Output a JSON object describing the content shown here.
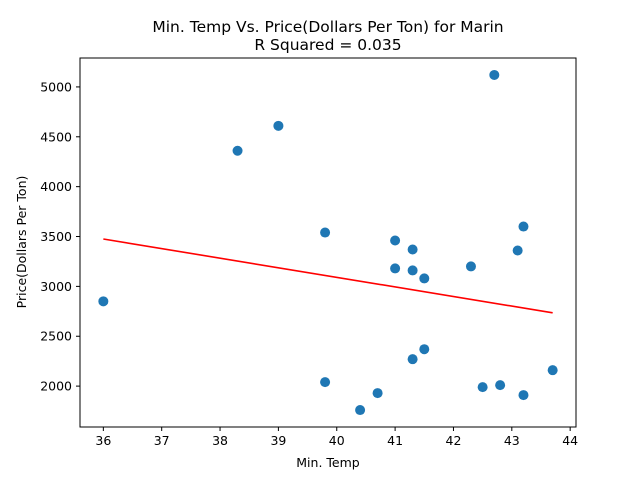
{
  "chart_data": {
    "type": "scatter",
    "title": "Min. Temp Vs. Price(Dollars Per Ton) for Marin",
    "subtitle": "R Squared =  0.035",
    "xlabel": "Min. Temp",
    "ylabel": "Price(Dollars Per Ton)",
    "xlim": [
      35.6,
      44.1
    ],
    "ylim": [
      1590,
      5290
    ],
    "xticks": [
      "36",
      "37",
      "38",
      "39",
      "40",
      "41",
      "42",
      "43",
      "44"
    ],
    "yticks": [
      "2000",
      "2500",
      "3000",
      "3500",
      "4000",
      "4500",
      "5000"
    ],
    "grid": false,
    "point_color": "#1f77b4",
    "line_color": "#ff0000",
    "points": [
      {
        "x": 36.0,
        "y": 2850
      },
      {
        "x": 38.3,
        "y": 4360
      },
      {
        "x": 39.0,
        "y": 4610
      },
      {
        "x": 39.8,
        "y": 3540
      },
      {
        "x": 39.8,
        "y": 2040
      },
      {
        "x": 40.4,
        "y": 1760
      },
      {
        "x": 40.7,
        "y": 1930
      },
      {
        "x": 41.0,
        "y": 3460
      },
      {
        "x": 41.0,
        "y": 3180
      },
      {
        "x": 41.3,
        "y": 3370
      },
      {
        "x": 41.3,
        "y": 3160
      },
      {
        "x": 41.3,
        "y": 2270
      },
      {
        "x": 41.5,
        "y": 3080
      },
      {
        "x": 41.5,
        "y": 2370
      },
      {
        "x": 42.3,
        "y": 3200
      },
      {
        "x": 42.5,
        "y": 1990
      },
      {
        "x": 42.7,
        "y": 5120
      },
      {
        "x": 42.8,
        "y": 2010
      },
      {
        "x": 43.1,
        "y": 3360
      },
      {
        "x": 43.2,
        "y": 3600
      },
      {
        "x": 43.2,
        "y": 1910
      },
      {
        "x": 43.7,
        "y": 2160
      }
    ],
    "fit_line": {
      "x": [
        36.0,
        43.7
      ],
      "y": [
        3475,
        2735
      ]
    }
  }
}
